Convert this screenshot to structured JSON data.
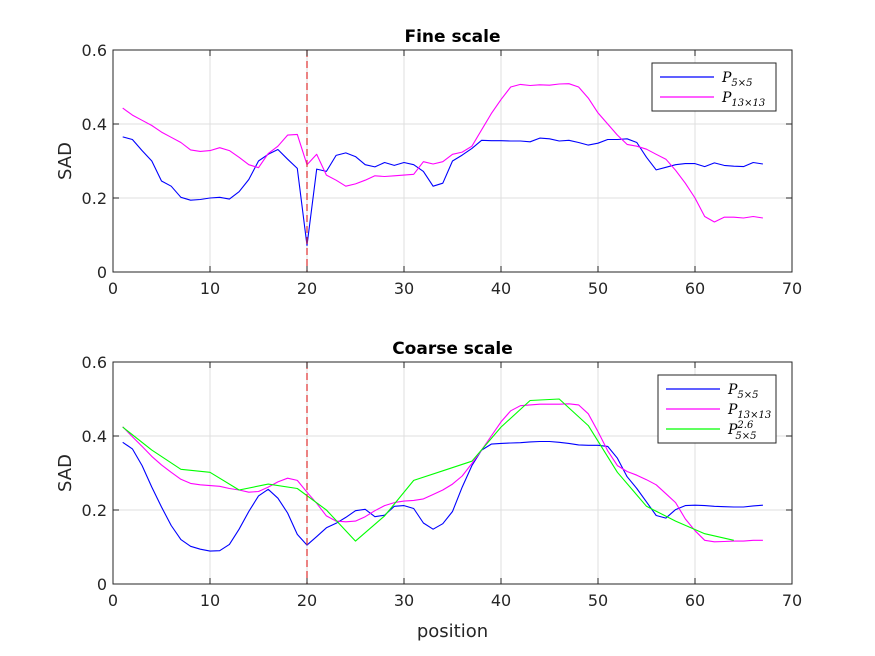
{
  "chart_data": [
    {
      "type": "line",
      "title": "Fine scale",
      "xlabel": "",
      "ylabel": "SAD",
      "xlim": [
        0,
        70
      ],
      "ylim": [
        0,
        0.6
      ],
      "xticks": [
        "0",
        "10",
        "20",
        "30",
        "40",
        "50",
        "60",
        "70"
      ],
      "yticks": [
        "0",
        "0.2",
        "0.4",
        "0.6"
      ],
      "grid": true,
      "legend_position": "top-right",
      "marker_line_x": 20,
      "series": [
        {
          "name": "P5×5",
          "label_base": "P",
          "label_sub": "5×5",
          "label_sup": "",
          "color": "#0000ff",
          "x": [
            1,
            2,
            3,
            4,
            5,
            6,
            7,
            8,
            9,
            10,
            11,
            12,
            13,
            14,
            15,
            16,
            17,
            18,
            19,
            20,
            21,
            22,
            23,
            24,
            25,
            26,
            27,
            28,
            29,
            30,
            31,
            32,
            33,
            34,
            35,
            36,
            37,
            38,
            39,
            40,
            41,
            42,
            43,
            44,
            45,
            46,
            47,
            48,
            49,
            50,
            51,
            52,
            53,
            54,
            55,
            56,
            57,
            58,
            59,
            60,
            61,
            62,
            63,
            64,
            65,
            66,
            67
          ],
          "y": [
            0.365,
            0.358,
            0.328,
            0.3,
            0.246,
            0.232,
            0.202,
            0.194,
            0.196,
            0.2,
            0.202,
            0.197,
            0.217,
            0.25,
            0.3,
            0.318,
            0.331,
            0.305,
            0.28,
            0.072,
            0.278,
            0.272,
            0.315,
            0.322,
            0.312,
            0.29,
            0.284,
            0.296,
            0.288,
            0.296,
            0.29,
            0.272,
            0.232,
            0.24,
            0.3,
            0.316,
            0.334,
            0.356,
            0.355,
            0.355,
            0.354,
            0.354,
            0.352,
            0.362,
            0.36,
            0.354,
            0.356,
            0.35,
            0.343,
            0.348,
            0.358,
            0.358,
            0.36,
            0.35,
            0.31,
            0.276,
            0.283,
            0.29,
            0.293,
            0.293,
            0.285,
            0.295,
            0.288,
            0.286,
            0.285,
            0.296,
            0.292
          ]
        },
        {
          "name": "P13×13",
          "label_base": "P",
          "label_sub": "13×13",
          "label_sup": "",
          "color": "#ff00ff",
          "x": [
            1,
            2,
            3,
            4,
            5,
            6,
            7,
            8,
            9,
            10,
            11,
            12,
            13,
            14,
            15,
            16,
            17,
            18,
            19,
            20,
            21,
            22,
            23,
            24,
            25,
            26,
            27,
            28,
            29,
            30,
            31,
            32,
            33,
            34,
            35,
            36,
            37,
            38,
            39,
            40,
            41,
            42,
            43,
            44,
            45,
            46,
            47,
            48,
            49,
            50,
            51,
            52,
            53,
            54,
            55,
            56,
            57,
            58,
            59,
            60,
            61,
            62,
            63,
            64,
            65,
            66,
            67
          ],
          "y": [
            0.443,
            0.424,
            0.41,
            0.396,
            0.378,
            0.364,
            0.35,
            0.33,
            0.326,
            0.328,
            0.336,
            0.328,
            0.31,
            0.29,
            0.282,
            0.32,
            0.34,
            0.37,
            0.372,
            0.29,
            0.318,
            0.262,
            0.248,
            0.232,
            0.238,
            0.248,
            0.26,
            0.258,
            0.26,
            0.262,
            0.264,
            0.298,
            0.292,
            0.298,
            0.318,
            0.324,
            0.34,
            0.384,
            0.428,
            0.466,
            0.5,
            0.507,
            0.504,
            0.506,
            0.505,
            0.508,
            0.509,
            0.5,
            0.47,
            0.43,
            0.4,
            0.37,
            0.345,
            0.34,
            0.332,
            0.318,
            0.305,
            0.275,
            0.24,
            0.2,
            0.15,
            0.135,
            0.148,
            0.148,
            0.146,
            0.15,
            0.146
          ]
        }
      ]
    },
    {
      "type": "line",
      "title": "Coarse scale",
      "xlabel": "position",
      "ylabel": "SAD",
      "xlim": [
        0,
        70
      ],
      "ylim": [
        0,
        0.6
      ],
      "xticks": [
        "0",
        "10",
        "20",
        "30",
        "40",
        "50",
        "60",
        "70"
      ],
      "yticks": [
        "0",
        "0.2",
        "0.4",
        "0.6"
      ],
      "grid": true,
      "legend_position": "top-right",
      "marker_line_x": 20,
      "series": [
        {
          "name": "P5×5",
          "label_base": "P",
          "label_sub": "5×5",
          "label_sup": "",
          "color": "#0000ff",
          "x": [
            1,
            2,
            3,
            4,
            5,
            6,
            7,
            8,
            9,
            10,
            11,
            12,
            13,
            14,
            15,
            16,
            17,
            18,
            19,
            20,
            21,
            22,
            23,
            24,
            25,
            26,
            27,
            28,
            29,
            30,
            31,
            32,
            33,
            34,
            35,
            36,
            37,
            38,
            39,
            40,
            41,
            42,
            43,
            44,
            45,
            46,
            47,
            48,
            49,
            50,
            51,
            52,
            53,
            54,
            55,
            56,
            57,
            58,
            59,
            60,
            61,
            62,
            63,
            64,
            65,
            66,
            67
          ],
          "y": [
            0.383,
            0.365,
            0.32,
            0.262,
            0.208,
            0.158,
            0.12,
            0.102,
            0.094,
            0.089,
            0.09,
            0.107,
            0.148,
            0.196,
            0.238,
            0.256,
            0.232,
            0.192,
            0.134,
            0.105,
            0.128,
            0.152,
            0.164,
            0.18,
            0.198,
            0.202,
            0.182,
            0.186,
            0.21,
            0.212,
            0.204,
            0.165,
            0.148,
            0.163,
            0.196,
            0.262,
            0.32,
            0.362,
            0.378,
            0.38,
            0.381,
            0.382,
            0.384,
            0.385,
            0.385,
            0.383,
            0.38,
            0.376,
            0.375,
            0.375,
            0.372,
            0.34,
            0.29,
            0.258,
            0.222,
            0.185,
            0.178,
            0.201,
            0.212,
            0.213,
            0.212,
            0.21,
            0.209,
            0.208,
            0.208,
            0.211,
            0.213
          ]
        },
        {
          "name": "P13×13",
          "label_base": "P",
          "label_sub": "13×13",
          "label_sup": "",
          "color": "#ff00ff",
          "x": [
            1,
            2,
            3,
            4,
            5,
            6,
            7,
            8,
            9,
            10,
            11,
            12,
            13,
            14,
            15,
            16,
            17,
            18,
            19,
            20,
            21,
            22,
            23,
            24,
            25,
            26,
            27,
            28,
            29,
            30,
            31,
            32,
            33,
            34,
            35,
            36,
            37,
            38,
            39,
            40,
            41,
            42,
            43,
            44,
            45,
            46,
            47,
            48,
            49,
            50,
            51,
            52,
            53,
            54,
            55,
            56,
            57,
            58,
            59,
            60,
            61,
            62,
            63,
            64,
            65,
            66,
            67
          ],
          "y": [
            0.425,
            0.398,
            0.372,
            0.345,
            0.322,
            0.302,
            0.283,
            0.272,
            0.268,
            0.266,
            0.264,
            0.258,
            0.254,
            0.248,
            0.25,
            0.262,
            0.276,
            0.286,
            0.28,
            0.248,
            0.218,
            0.184,
            0.17,
            0.168,
            0.17,
            0.182,
            0.198,
            0.212,
            0.22,
            0.224,
            0.226,
            0.23,
            0.242,
            0.254,
            0.27,
            0.292,
            0.326,
            0.362,
            0.4,
            0.438,
            0.468,
            0.482,
            0.484,
            0.486,
            0.486,
            0.486,
            0.487,
            0.484,
            0.46,
            0.412,
            0.36,
            0.32,
            0.304,
            0.294,
            0.282,
            0.268,
            0.244,
            0.22,
            0.176,
            0.144,
            0.118,
            0.114,
            0.115,
            0.116,
            0.116,
            0.118,
            0.118
          ]
        },
        {
          "name": "P5×5 2.6",
          "label_base": "P",
          "label_sub": "5×5",
          "label_sup": "2.6",
          "color": "#00ff00",
          "x": [
            1,
            4,
            7,
            10,
            13,
            16,
            19,
            22,
            25,
            28,
            31,
            34,
            37,
            40,
            43,
            46,
            49,
            52,
            55,
            58,
            61,
            64
          ],
          "y": [
            0.424,
            0.362,
            0.31,
            0.302,
            0.254,
            0.27,
            0.258,
            0.2,
            0.116,
            0.184,
            0.28,
            0.306,
            0.332,
            0.424,
            0.496,
            0.5,
            0.428,
            0.302,
            0.21,
            0.17,
            0.136,
            0.118
          ]
        }
      ]
    }
  ]
}
